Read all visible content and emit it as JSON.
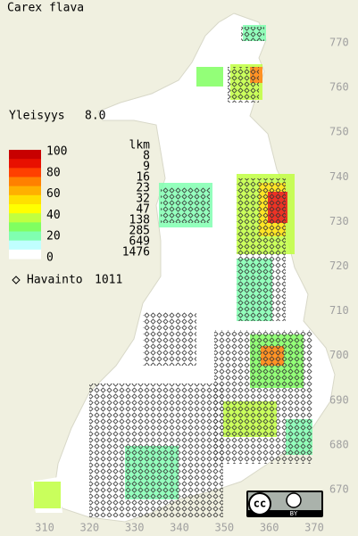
{
  "title": "Carex flava",
  "yleisyys": {
    "label": "Yleisyys",
    "value": "8.0"
  },
  "scale": {
    "ticks": [
      100,
      80,
      60,
      40,
      20,
      0
    ],
    "colors": [
      "#c80000",
      "#e81000",
      "#ff4000",
      "#ff8000",
      "#ffb000",
      "#ffe000",
      "#ffff00",
      "#c0ff40",
      "#80ff60",
      "#80ffb0",
      "#c0ffff",
      "#ffffff"
    ]
  },
  "counts": {
    "header": "lkm",
    "values": [
      8,
      9,
      16,
      23,
      32,
      47,
      138,
      285,
      649,
      1476
    ]
  },
  "havainto": {
    "label": "Havainto",
    "value": 1011
  },
  "grid": {
    "north": [
      770,
      760,
      750,
      740,
      730,
      720,
      710,
      700,
      690,
      680,
      670
    ],
    "east": [
      310,
      320,
      330,
      340,
      350,
      360,
      370
    ]
  },
  "license": {
    "cc": "cc",
    "by": "BY"
  }
}
